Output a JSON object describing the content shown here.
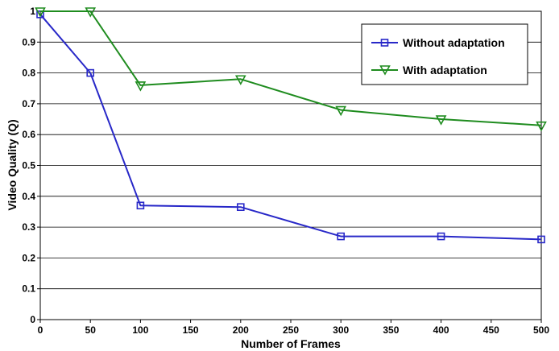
{
  "chart_data": {
    "type": "line",
    "title": "",
    "xlabel": "Number of Frames",
    "ylabel": "Video Quality (Q)",
    "xlim": [
      0,
      500
    ],
    "ylim": [
      0,
      1
    ],
    "xticks": [
      0,
      50,
      100,
      150,
      200,
      250,
      300,
      350,
      400,
      450,
      500
    ],
    "yticks": [
      0,
      0.1,
      0.2,
      0.3,
      0.4,
      0.5,
      0.6,
      0.7,
      0.8,
      0.9,
      1
    ],
    "xtick_labels": [
      "0",
      "50",
      "100",
      "150",
      "200",
      "250",
      "300",
      "350",
      "400",
      "450",
      "500"
    ],
    "ytick_labels": [
      "0",
      "0.1",
      "0.2",
      "0.3",
      "0.4",
      "0.5",
      "0.6",
      "0.7",
      "0.8",
      "0.9",
      "1"
    ],
    "grid": "horizontal",
    "legend_position": "top-right",
    "series": [
      {
        "name": "Without adaptation",
        "color": "#2828c8",
        "marker": "square",
        "x": [
          0,
          50,
          100,
          200,
          300,
          400,
          500
        ],
        "y": [
          0.99,
          0.8,
          0.37,
          0.365,
          0.27,
          0.27,
          0.26
        ]
      },
      {
        "name": "With adaptation",
        "color": "#1f8c1f",
        "marker": "triangle-down",
        "x": [
          0,
          50,
          100,
          200,
          300,
          400,
          500
        ],
        "y": [
          1.0,
          1.0,
          0.76,
          0.78,
          0.68,
          0.65,
          0.63
        ]
      }
    ]
  }
}
